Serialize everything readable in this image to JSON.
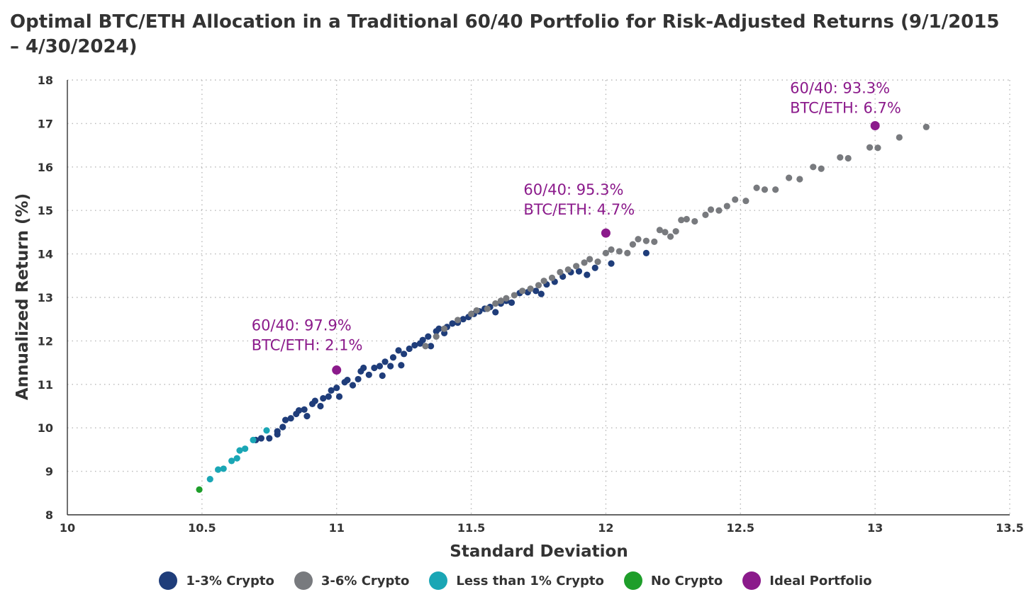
{
  "chart_data": {
    "type": "scatter",
    "title": "Optimal BTC/ETH Allocation in a Traditional 60/40 Portfolio for Risk-Adjusted Returns (9/1/2015 – 4/30/2024)",
    "xlabel": "Standard Deviation",
    "ylabel": "Annualized Return (%)",
    "xlim": [
      10,
      13.5
    ],
    "ylim": [
      8,
      18
    ],
    "xticks": [
      "10",
      "10.5",
      "11",
      "11.5",
      "12",
      "12.5",
      "13",
      "13.5"
    ],
    "yticks": [
      "8",
      "9",
      "10",
      "11",
      "12",
      "13",
      "14",
      "15",
      "16",
      "17",
      "18"
    ],
    "grid": true,
    "legend_position": "bottom",
    "series": [
      {
        "name": "1-3% Crypto",
        "color": "#1f3d7a",
        "points": [
          [
            10.7,
            9.72
          ],
          [
            10.72,
            9.76
          ],
          [
            10.75,
            9.76
          ],
          [
            10.78,
            9.85
          ],
          [
            10.78,
            9.92
          ],
          [
            10.8,
            10.02
          ],
          [
            10.81,
            10.18
          ],
          [
            10.83,
            10.22
          ],
          [
            10.85,
            10.32
          ],
          [
            10.86,
            10.4
          ],
          [
            10.88,
            10.42
          ],
          [
            10.89,
            10.27
          ],
          [
            10.91,
            10.55
          ],
          [
            10.92,
            10.62
          ],
          [
            10.94,
            10.5
          ],
          [
            10.95,
            10.68
          ],
          [
            10.97,
            10.72
          ],
          [
            10.98,
            10.86
          ],
          [
            11.0,
            10.92
          ],
          [
            11.01,
            10.72
          ],
          [
            11.03,
            11.05
          ],
          [
            11.04,
            11.1
          ],
          [
            11.06,
            10.98
          ],
          [
            11.08,
            11.12
          ],
          [
            11.09,
            11.3
          ],
          [
            11.1,
            11.38
          ],
          [
            11.12,
            11.22
          ],
          [
            11.14,
            11.38
          ],
          [
            11.16,
            11.42
          ],
          [
            11.17,
            11.2
          ],
          [
            11.18,
            11.52
          ],
          [
            11.2,
            11.42
          ],
          [
            11.21,
            11.62
          ],
          [
            11.23,
            11.78
          ],
          [
            11.24,
            11.44
          ],
          [
            11.25,
            11.7
          ],
          [
            11.27,
            11.82
          ],
          [
            11.29,
            11.9
          ],
          [
            11.31,
            11.94
          ],
          [
            11.32,
            12.02
          ],
          [
            11.34,
            12.1
          ],
          [
            11.35,
            11.88
          ],
          [
            11.37,
            12.22
          ],
          [
            11.38,
            12.28
          ],
          [
            11.4,
            12.18
          ],
          [
            11.41,
            12.32
          ],
          [
            11.43,
            12.4
          ],
          [
            11.45,
            12.42
          ],
          [
            11.47,
            12.5
          ],
          [
            11.49,
            12.55
          ],
          [
            11.51,
            12.62
          ],
          [
            11.53,
            12.68
          ],
          [
            11.55,
            12.74
          ],
          [
            11.57,
            12.78
          ],
          [
            11.59,
            12.66
          ],
          [
            11.61,
            12.86
          ],
          [
            11.63,
            12.92
          ],
          [
            11.65,
            12.88
          ],
          [
            11.68,
            13.1
          ],
          [
            11.71,
            13.12
          ],
          [
            11.74,
            13.15
          ],
          [
            11.76,
            13.08
          ],
          [
            11.78,
            13.3
          ],
          [
            11.81,
            13.36
          ],
          [
            11.84,
            13.48
          ],
          [
            11.87,
            13.58
          ],
          [
            11.9,
            13.6
          ],
          [
            11.93,
            13.52
          ],
          [
            11.96,
            13.68
          ],
          [
            12.02,
            13.78
          ],
          [
            12.15,
            14.02
          ]
        ]
      },
      {
        "name": "3-6% Crypto",
        "color": "#787a7e",
        "points": [
          [
            11.33,
            11.88
          ],
          [
            11.37,
            12.1
          ],
          [
            11.4,
            12.28
          ],
          [
            11.45,
            12.48
          ],
          [
            11.5,
            12.62
          ],
          [
            11.52,
            12.7
          ],
          [
            11.56,
            12.74
          ],
          [
            11.59,
            12.86
          ],
          [
            11.61,
            12.92
          ],
          [
            11.63,
            12.98
          ],
          [
            11.66,
            13.05
          ],
          [
            11.69,
            13.15
          ],
          [
            11.72,
            13.2
          ],
          [
            11.75,
            13.28
          ],
          [
            11.77,
            13.38
          ],
          [
            11.8,
            13.45
          ],
          [
            11.83,
            13.58
          ],
          [
            11.86,
            13.64
          ],
          [
            11.89,
            13.72
          ],
          [
            11.92,
            13.8
          ],
          [
            11.94,
            13.88
          ],
          [
            11.97,
            13.82
          ],
          [
            12.0,
            14.02
          ],
          [
            12.02,
            14.1
          ],
          [
            12.05,
            14.06
          ],
          [
            12.08,
            14.02
          ],
          [
            12.1,
            14.22
          ],
          [
            12.12,
            14.34
          ],
          [
            12.15,
            14.3
          ],
          [
            12.18,
            14.28
          ],
          [
            12.2,
            14.55
          ],
          [
            12.22,
            14.5
          ],
          [
            12.24,
            14.4
          ],
          [
            12.26,
            14.52
          ],
          [
            12.28,
            14.78
          ],
          [
            12.3,
            14.8
          ],
          [
            12.33,
            14.75
          ],
          [
            12.37,
            14.9
          ],
          [
            12.39,
            15.02
          ],
          [
            12.42,
            15.0
          ],
          [
            12.45,
            15.1
          ],
          [
            12.48,
            15.25
          ],
          [
            12.52,
            15.22
          ],
          [
            12.56,
            15.52
          ],
          [
            12.59,
            15.48
          ],
          [
            12.63,
            15.48
          ],
          [
            12.68,
            15.75
          ],
          [
            12.72,
            15.72
          ],
          [
            12.77,
            16.0
          ],
          [
            12.8,
            15.96
          ],
          [
            12.87,
            16.22
          ],
          [
            12.9,
            16.2
          ],
          [
            12.98,
            16.45
          ],
          [
            13.01,
            16.44
          ],
          [
            13.09,
            16.68
          ],
          [
            13.19,
            16.92
          ]
        ]
      },
      {
        "name": "Less than 1% Crypto",
        "color": "#1aa6b5",
        "points": [
          [
            10.53,
            8.82
          ],
          [
            10.56,
            9.04
          ],
          [
            10.58,
            9.06
          ],
          [
            10.61,
            9.24
          ],
          [
            10.63,
            9.3
          ],
          [
            10.64,
            9.48
          ],
          [
            10.66,
            9.52
          ],
          [
            10.69,
            9.72
          ],
          [
            10.74,
            9.94
          ]
        ]
      },
      {
        "name": "No Crypto",
        "color": "#1e9e2a",
        "points": [
          [
            10.49,
            8.58
          ]
        ]
      },
      {
        "name": "Ideal Portfolio",
        "color": "#8b1a8b",
        "points": [
          [
            11.0,
            11.33
          ],
          [
            12.0,
            14.48
          ],
          [
            13.0,
            16.95
          ]
        ]
      }
    ],
    "annotations": [
      {
        "x": 11.0,
        "y": 11.33,
        "line1": "60/40: 97.9%",
        "line2": "BTC/ETH: 2.1%"
      },
      {
        "x": 12.0,
        "y": 14.48,
        "line1": "60/40: 95.3%",
        "line2": "BTC/ETH: 4.7%"
      },
      {
        "x": 13.0,
        "y": 16.95,
        "line1": "60/40: 93.3%",
        "line2": "BTC/ETH: 6.7%"
      }
    ]
  }
}
